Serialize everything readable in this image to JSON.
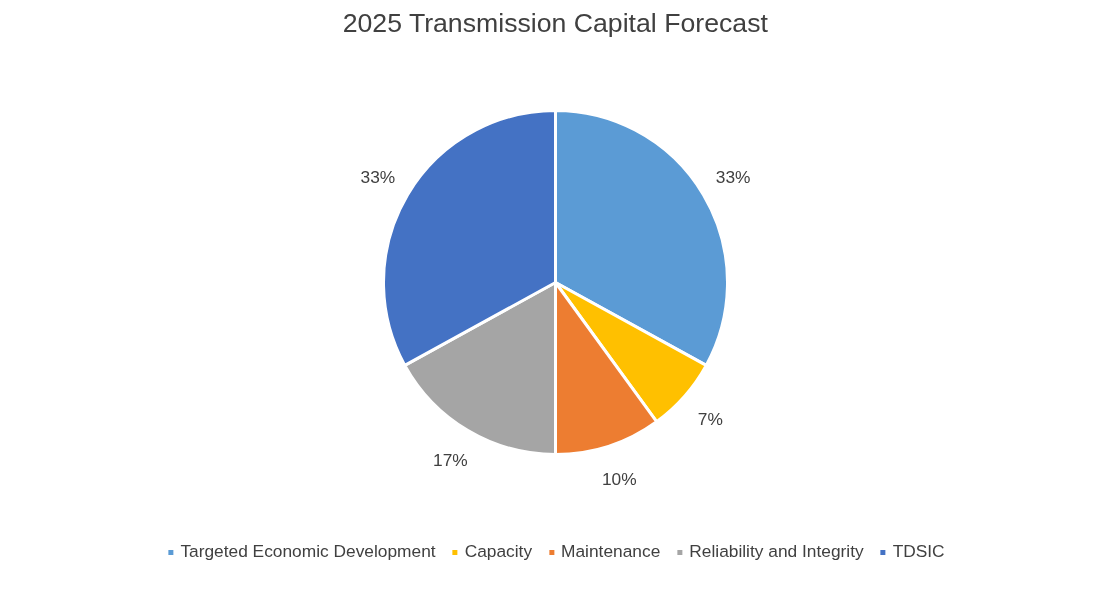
{
  "chart_data": {
    "type": "pie",
    "title": "2025 Transmission Capital Forecast",
    "categories": [
      "Targeted Economic Development",
      "Capacity",
      "Maintenance",
      "Reliability and Integrity",
      "TDSIC"
    ],
    "values": [
      33,
      7,
      10,
      17,
      33
    ],
    "value_labels": [
      "33%",
      "7%",
      "10%",
      "17%",
      "33%"
    ],
    "colors": [
      "#5b9bd5",
      "#ffc000",
      "#ed7d31",
      "#a5a5a5",
      "#4472c4"
    ],
    "legend": "bottom"
  }
}
